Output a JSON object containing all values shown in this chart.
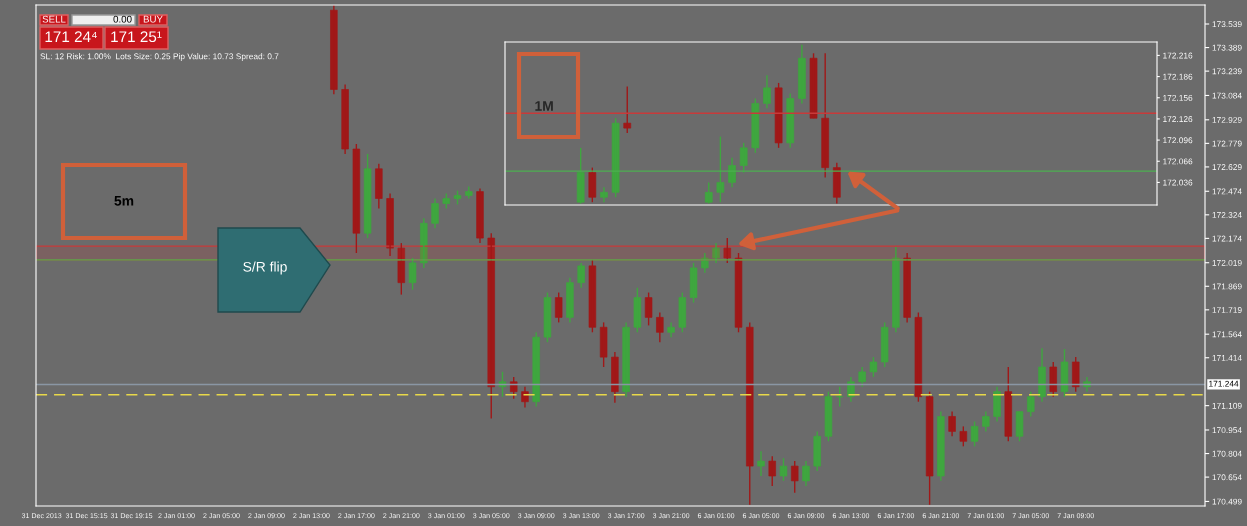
{
  "chart_data": [
    {
      "type": "candlestick",
      "categories": [
        "31 Dec 2013",
        null,
        null,
        null,
        "31 Dec 15:15",
        null,
        null,
        null,
        "31 Dec 19:15",
        null,
        null,
        null,
        "2 Jan 01:00",
        null,
        null,
        null,
        "2 Jan 05:00",
        null,
        null,
        null,
        "2 Jan 09:00",
        null,
        null,
        null,
        "2 Jan 13:00",
        null,
        null,
        null,
        "2 Jan 17:00",
        null,
        null,
        null,
        "2 Jan 21:00",
        null,
        null,
        null,
        "3 Jan 01:00",
        null,
        null,
        null,
        "3 Jan 05:00",
        null,
        null,
        null,
        "3 Jan 09:00",
        null,
        null,
        null,
        "3 Jan 13:00",
        null,
        null,
        null,
        "3 Jan 17:00",
        null,
        null,
        null,
        "3 Jan 21:00",
        null,
        null,
        null,
        "6 Jan 01:00",
        null,
        null,
        null,
        "6 Jan 05:00",
        null,
        null,
        null,
        "6 Jan 09:00",
        null,
        null,
        null,
        "6 Jan 13:00",
        null,
        null,
        null,
        "6 Jan 17:00",
        null,
        null,
        null,
        "6 Jan 21:00",
        null,
        null,
        null,
        "7 Jan 01:00",
        null,
        null,
        null,
        "7 Jan 05:00",
        null,
        null,
        null,
        "7 Jan 09:00",
        null,
        null,
        null,
        null,
        null,
        null,
        null,
        null,
        null,
        null,
        null
      ],
      "ohlc": [
        null,
        null,
        null,
        null,
        null,
        null,
        null,
        null,
        null,
        null,
        null,
        null,
        null,
        null,
        null,
        null,
        null,
        null,
        null,
        null,
        null,
        null,
        null,
        null,
        null,
        null,
        [
          173.627,
          173.658,
          173.091,
          173.122
        ],
        [
          173.122,
          173.154,
          172.712,
          172.743
        ],
        [
          172.743,
          172.775,
          172.081,
          172.207
        ],
        [
          172.207,
          172.712,
          172.176,
          172.617
        ],
        [
          172.617,
          172.649,
          172.365,
          172.428
        ],
        [
          172.428,
          172.46,
          172.062,
          172.112
        ],
        [
          172.112,
          172.144,
          171.816,
          171.892
        ],
        [
          171.892,
          172.049,
          171.847,
          172.018
        ],
        [
          172.018,
          172.302,
          171.986,
          172.27
        ],
        [
          172.27,
          172.428,
          172.239,
          172.396
        ],
        [
          172.396,
          172.46,
          172.365,
          172.428
        ],
        [
          172.428,
          172.478,
          172.39,
          172.447
        ],
        [
          172.447,
          172.504,
          172.428,
          172.472
        ],
        [
          172.472,
          172.491,
          172.144,
          172.176
        ],
        [
          172.176,
          172.207,
          171.027,
          171.229
        ],
        [
          171.229,
          171.324,
          171.166,
          171.261
        ],
        [
          171.261,
          171.292,
          171.153,
          171.198
        ],
        [
          171.198,
          171.229,
          171.097,
          171.134
        ],
        [
          171.134,
          171.576,
          171.103,
          171.545
        ],
        [
          171.545,
          171.829,
          171.513,
          171.797
        ],
        [
          171.797,
          171.829,
          171.639,
          171.671
        ],
        [
          171.671,
          171.923,
          171.639,
          171.892
        ],
        [
          171.892,
          172.018,
          171.86,
          171.999
        ],
        [
          171.999,
          172.037,
          171.576,
          171.608
        ],
        [
          171.608,
          171.639,
          171.355,
          171.418
        ],
        [
          171.418,
          171.45,
          171.128,
          171.198
        ],
        [
          171.198,
          171.639,
          171.166,
          171.608
        ],
        [
          171.608,
          171.86,
          171.576,
          171.797
        ],
        [
          171.797,
          171.829,
          171.62,
          171.671
        ],
        [
          171.671,
          171.702,
          171.513,
          171.576
        ],
        [
          171.576,
          171.639,
          171.545,
          171.608
        ],
        [
          171.608,
          171.829,
          171.576,
          171.797
        ],
        [
          171.797,
          172.018,
          171.765,
          171.986
        ],
        [
          171.986,
          172.081,
          171.955,
          172.049
        ],
        [
          172.049,
          172.144,
          172.018,
          172.112
        ],
        [
          172.112,
          172.176,
          172.018,
          172.049
        ],
        [
          172.049,
          172.081,
          171.576,
          171.608
        ],
        [
          171.608,
          171.639,
          170.478,
          170.724
        ],
        [
          170.724,
          170.819,
          170.661,
          170.756
        ],
        [
          170.756,
          170.787,
          170.598,
          170.661
        ],
        [
          170.661,
          170.775,
          170.63,
          170.724
        ],
        [
          170.724,
          170.756,
          170.554,
          170.63
        ],
        [
          170.63,
          170.756,
          170.598,
          170.724
        ],
        [
          170.724,
          170.945,
          170.693,
          170.914
        ],
        [
          170.914,
          171.198,
          170.882,
          171.166
        ],
        [
          171.166,
          171.229,
          171.103,
          171.166
        ],
        [
          171.166,
          171.292,
          171.134,
          171.261
        ],
        [
          171.261,
          171.355,
          171.229,
          171.324
        ],
        [
          171.324,
          171.418,
          171.292,
          171.387
        ],
        [
          171.387,
          171.639,
          171.355,
          171.608
        ],
        [
          171.608,
          172.119,
          171.576,
          172.049
        ],
        [
          172.049,
          172.081,
          171.639,
          171.671
        ],
        [
          171.671,
          171.702,
          171.134,
          171.166
        ],
        [
          171.166,
          171.198,
          170.478,
          170.661
        ],
        [
          170.661,
          171.071,
          170.63,
          171.04
        ],
        [
          171.04,
          171.071,
          170.914,
          170.945
        ],
        [
          170.945,
          170.977,
          170.85,
          170.882
        ],
        [
          170.882,
          171.008,
          170.85,
          170.977
        ],
        [
          170.977,
          171.071,
          170.945,
          171.04
        ],
        [
          171.04,
          171.229,
          171.008,
          171.198
        ],
        [
          171.198,
          171.355,
          170.882,
          170.914
        ],
        [
          170.914,
          171.071,
          170.882,
          171.071
        ],
        [
          171.071,
          171.198,
          171.04,
          171.166
        ],
        [
          171.166,
          171.475,
          171.134,
          171.355
        ],
        [
          171.355,
          171.387,
          171.166,
          171.198
        ],
        [
          171.198,
          171.469,
          171.166,
          171.387
        ],
        [
          171.387,
          171.418,
          171.198,
          171.229
        ],
        [
          171.229,
          171.292,
          171.198,
          171.261
        ],
        null,
        null,
        null,
        null,
        null,
        null,
        null,
        null,
        null,
        null
      ],
      "ylim": [
        170.47,
        173.66
      ],
      "yticks": [
        170.499,
        170.654,
        170.804,
        170.954,
        171.109,
        171.414,
        171.564,
        171.719,
        171.869,
        172.019,
        172.174,
        172.324,
        172.474,
        172.629,
        172.779,
        172.929,
        173.084,
        173.239,
        173.389,
        173.539
      ],
      "ref_lines": [
        {
          "axis": "y",
          "value": 172.037,
          "color": "#4caf50"
        },
        {
          "axis": "y",
          "value": 171.178,
          "color": "#e8d84a",
          "line_style": "dashed"
        },
        {
          "axis": "y",
          "value": 171.244,
          "label": "171.244",
          "color": "#8a96a4"
        }
      ],
      "bands": [
        {
          "axis": "y",
          "from": 172.037,
          "to": 172.125,
          "color": "#c83a3a"
        }
      ],
      "annotations": [
        "SELL",
        "0.00",
        "BUY",
        "171 24⁴",
        "171 25¹",
        "SL: 12 Risk: 1.00%  Lots Size: 0.25 Pip Value: 10.73 Spread: 0.7",
        "5m",
        "S/R flip"
      ],
      "grid": false
    },
    {
      "type": "candlestick",
      "categories": [
        null,
        null,
        null,
        null,
        null,
        null,
        null,
        null,
        null,
        null,
        null,
        null,
        null,
        null,
        null,
        null,
        null,
        null,
        null,
        null,
        null,
        null,
        null,
        null,
        null,
        null,
        null,
        null,
        null,
        null,
        null,
        null,
        null,
        null,
        null,
        null,
        null,
        null,
        null,
        null,
        null,
        null,
        null,
        null,
        null,
        null,
        null,
        null,
        null,
        null,
        null,
        null,
        null,
        null,
        null,
        null
      ],
      "ohlc": [
        null,
        null,
        null,
        null,
        null,
        null,
        [
          172.008,
          172.085,
          172.006,
          172.05
        ],
        [
          172.05,
          172.057,
          172.008,
          172.015
        ],
        [
          172.015,
          172.029,
          172.008,
          172.022
        ],
        [
          172.022,
          172.127,
          172.015,
          172.12
        ],
        [
          172.12,
          172.172,
          172.106,
          172.113
        ],
        null,
        null,
        null,
        null,
        null,
        null,
        [
          172.008,
          172.036,
          172.006,
          172.022
        ],
        [
          172.022,
          172.101,
          172.008,
          172.036
        ],
        [
          172.036,
          172.071,
          172.029,
          172.06
        ],
        [
          172.06,
          172.092,
          172.05,
          172.085
        ],
        [
          172.085,
          172.155,
          172.078,
          172.148
        ],
        [
          172.148,
          172.188,
          172.141,
          172.17
        ],
        [
          172.17,
          172.177,
          172.085,
          172.092
        ],
        [
          172.092,
          172.162,
          172.085,
          172.155
        ],
        [
          172.155,
          172.231,
          172.148,
          172.212
        ],
        [
          172.212,
          172.219,
          172.127,
          172.127
        ],
        [
          172.127,
          172.219,
          172.043,
          172.057
        ],
        [
          172.057,
          172.064,
          172.006,
          172.015
        ],
        null,
        null,
        null,
        null,
        null,
        null,
        null,
        null,
        null,
        null,
        null,
        null,
        null,
        null,
        null,
        null,
        null,
        null,
        null,
        null,
        null,
        null,
        null,
        null,
        null,
        null,
        null
      ],
      "ylim": [
        172.004,
        172.235
      ],
      "yticks": [
        172.036,
        172.066,
        172.096,
        172.126,
        172.156,
        172.186,
        172.216
      ],
      "tick_labels": "y",
      "ref_lines": [
        {
          "axis": "y",
          "value": 172.052,
          "color": "#4caf50"
        },
        {
          "axis": "y",
          "value": 172.134,
          "color": "#c83a3a"
        }
      ],
      "annotations": [
        "1M"
      ],
      "grid": false
    }
  ]
}
